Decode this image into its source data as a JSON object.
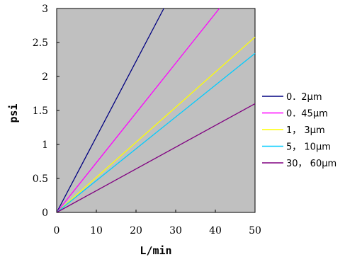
{
  "chart_data": {
    "type": "line",
    "xlabel": "L/min",
    "ylabel": "psi",
    "xlim": [
      0,
      50
    ],
    "ylim": [
      0,
      3
    ],
    "xticks": [
      "0",
      "10",
      "20",
      "30",
      "40",
      "50"
    ],
    "yticks": [
      "0",
      "0.5",
      "1",
      "1.5",
      "2",
      "2.5",
      "3"
    ],
    "plot_background": "#c0c0c0",
    "grid": false,
    "legend_position": "right",
    "series": [
      {
        "name": "0．2μm",
        "color": "#000080",
        "x": [
          0,
          27
        ],
        "y": [
          0,
          3
        ]
      },
      {
        "name": "0．45μm",
        "color": "#ff00ff",
        "x": [
          0,
          41
        ],
        "y": [
          0,
          3
        ]
      },
      {
        "name": "1，  3μm",
        "color": "#ffff00",
        "x": [
          0,
          50
        ],
        "y": [
          0,
          2.58
        ]
      },
      {
        "name": "5，  10μm",
        "color": "#00ccff",
        "x": [
          0,
          50
        ],
        "y": [
          0,
          2.34
        ]
      },
      {
        "name": "30，  60μm",
        "color": "#800080",
        "x": [
          0,
          50
        ],
        "y": [
          0,
          1.6
        ]
      }
    ]
  }
}
